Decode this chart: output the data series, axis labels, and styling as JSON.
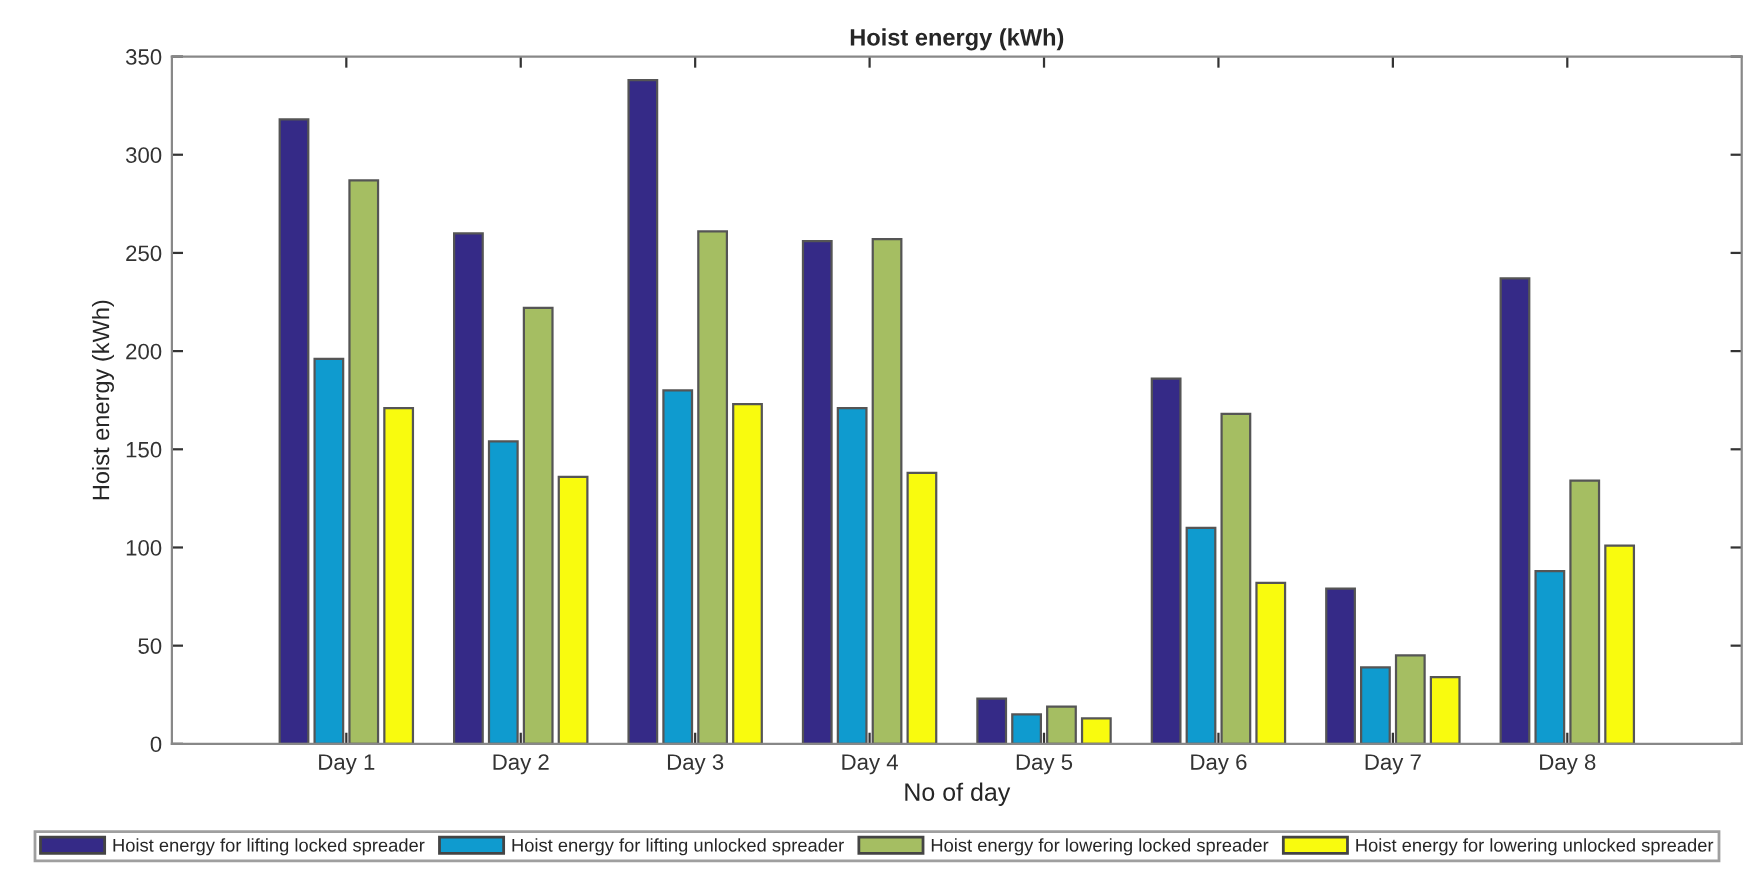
{
  "chart_data": {
    "type": "bar",
    "title": "Hoist energy (kWh)",
    "xlabel": "No of day",
    "ylabel": "Hoist energy (kWh)",
    "categories": [
      "Day 1",
      "Day 2",
      "Day 3",
      "Day 4",
      "Day 5",
      "Day 6",
      "Day 7",
      "Day 8"
    ],
    "series": [
      {
        "name": "Hoist energy for lifting locked spreader",
        "color": "#352a87",
        "values": [
          318,
          260,
          338,
          256,
          23,
          186,
          79,
          237
        ]
      },
      {
        "name": "Hoist energy for lifting unlocked spreader",
        "color": "#0f9bcf",
        "values": [
          196,
          154,
          180,
          171,
          15,
          110,
          39,
          88
        ]
      },
      {
        "name": "Hoist energy for lowering locked spreader",
        "color": "#a5be62",
        "values": [
          287,
          222,
          261,
          257,
          19,
          168,
          45,
          134
        ]
      },
      {
        "name": "Hoist energy for lowering unlocked spreader",
        "color": "#f9fb0e",
        "values": [
          171,
          136,
          173,
          138,
          13,
          82,
          34,
          101
        ]
      }
    ],
    "ylim": [
      0,
      350
    ],
    "yticks": [
      0,
      50,
      100,
      150,
      200,
      250,
      300,
      350
    ],
    "grid": false,
    "legend": "bottom"
  }
}
